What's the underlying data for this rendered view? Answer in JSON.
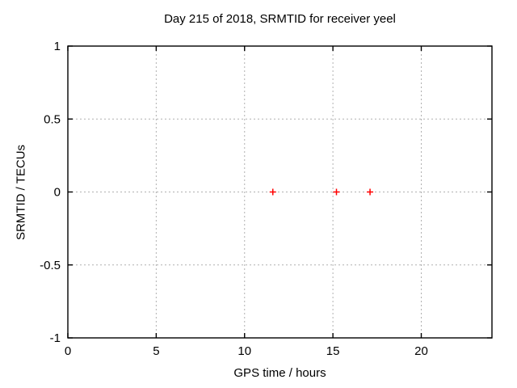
{
  "chart_data": {
    "type": "scatter",
    "title": "Day 215 of 2018, SRMTID for receiver yeel",
    "xlabel": "GPS time / hours",
    "ylabel": "SRMTID / TECUs",
    "xlim": [
      0,
      24
    ],
    "ylim": [
      -1,
      1
    ],
    "x_ticks": [
      0,
      5,
      10,
      15,
      20
    ],
    "x_tick_labels": [
      "0",
      "5",
      "10",
      "15",
      "20"
    ],
    "y_ticks": [
      -1,
      -0.5,
      0,
      0.5,
      1
    ],
    "y_tick_labels": [
      "-1",
      "-0.5",
      "0",
      "0.5",
      "1"
    ],
    "grid": true,
    "grid_style": "dotted",
    "legend": "none",
    "series": [
      {
        "name": "SRMTID",
        "marker": "plus",
        "color": "#ff0000",
        "points": [
          {
            "x": 11.6,
            "y": 0
          },
          {
            "x": 15.2,
            "y": 0
          },
          {
            "x": 17.1,
            "y": 0
          }
        ]
      }
    ]
  },
  "colors": {
    "background": "#ffffff",
    "frame": "#000000",
    "grid": "#b0b0b0",
    "text": "#000000",
    "marker": "#ff0000"
  }
}
